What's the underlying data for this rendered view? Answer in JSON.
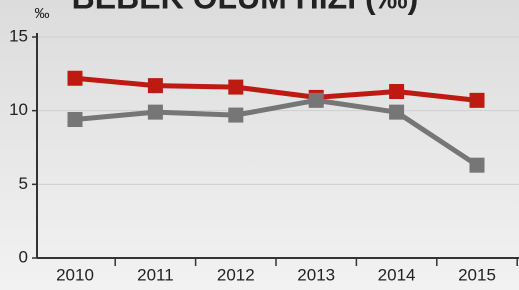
{
  "chart_data": {
    "type": "line",
    "title": "BEBEK ÖLÜM HIZI (‰)",
    "y_label": "‰",
    "categories": [
      "2010",
      "2011",
      "2012",
      "2013",
      "2014",
      "2015"
    ],
    "series": [
      {
        "color": "#bf1a12",
        "values": [
          12.2,
          11.7,
          11.6,
          10.9,
          11.3,
          10.7
        ]
      },
      {
        "color": "#767676",
        "values": [
          9.4,
          9.9,
          9.7,
          10.7,
          9.9,
          6.3
        ]
      }
    ],
    "ylim": [
      0,
      15
    ],
    "yticks": [
      0,
      5,
      10,
      15
    ],
    "grid": true
  }
}
